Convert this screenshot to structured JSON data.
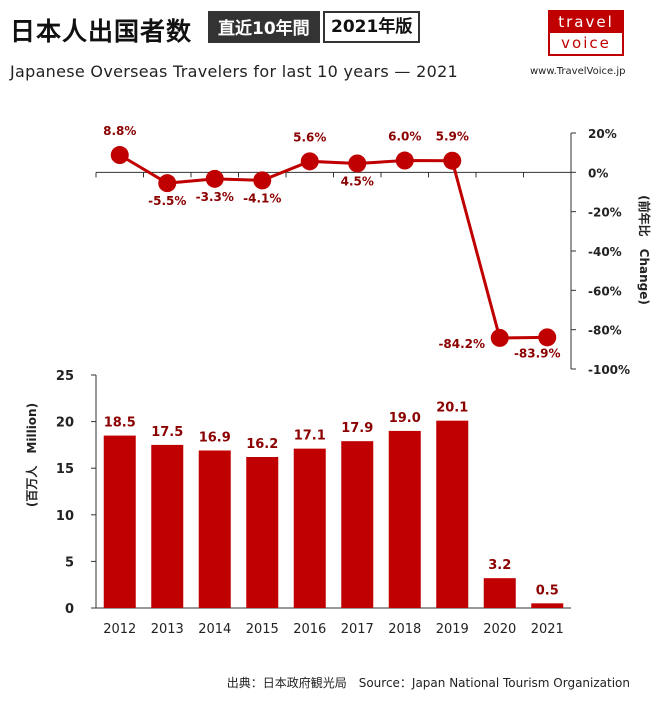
{
  "header": {
    "title": "日本人出国者数",
    "badge_period": "直近10年間",
    "badge_edition": "2021年版",
    "subtitle": "Japanese Overseas Travelers for last 10 years — 2021",
    "logo_top": "travel",
    "logo_bottom": "voice",
    "website": "www.TravelVoice.jp"
  },
  "footer": {
    "source": "出典：日本政府観光局　Source：Japan  National Tourism  Organization"
  },
  "colors": {
    "accent": "#c00000",
    "label": "#8b0000",
    "axis": "#333333"
  },
  "chart_data": [
    {
      "type": "line",
      "categories": [
        "2012",
        "2013",
        "2014",
        "2015",
        "2016",
        "2017",
        "2018",
        "2019",
        "2020",
        "2021"
      ],
      "values": [
        8.8,
        -5.5,
        -3.3,
        -4.1,
        5.6,
        4.5,
        6.0,
        5.9,
        -84.2,
        -83.9
      ],
      "data_labels": [
        "8.8%",
        "-5.5%",
        "-3.3%",
        "-4.1%",
        "5.6%",
        "4.5%",
        "6.0%",
        "5.9%",
        "-84.2%",
        "-83.9%"
      ],
      "ylabel": "(前年比　Change)",
      "ylim": [
        -100,
        20
      ],
      "yticks": [
        20,
        0,
        -20,
        -40,
        -60,
        -80,
        -100
      ],
      "ytick_labels": [
        "20%",
        "0%",
        "-20%",
        "-40%",
        "-60%",
        "-80%",
        "-100%"
      ],
      "y_axis_side": "right",
      "grid": false
    },
    {
      "type": "bar",
      "categories": [
        "2012",
        "2013",
        "2014",
        "2015",
        "2016",
        "2017",
        "2018",
        "2019",
        "2020",
        "2021"
      ],
      "values": [
        18.5,
        17.5,
        16.9,
        16.2,
        17.1,
        17.9,
        19.0,
        20.1,
        3.2,
        0.5
      ],
      "data_labels": [
        "18.5",
        "17.5",
        "16.9",
        "16.2",
        "17.1",
        "17.9",
        "19.0",
        "20.1",
        "3.2",
        "0.5"
      ],
      "ylabel": "(百万人　Million)",
      "ylim": [
        0,
        25
      ],
      "yticks": [
        0,
        5,
        10,
        15,
        20,
        25
      ],
      "ytick_labels": [
        "0",
        "5",
        "10",
        "15",
        "20",
        "25"
      ],
      "y_axis_side": "left",
      "grid": false
    }
  ]
}
